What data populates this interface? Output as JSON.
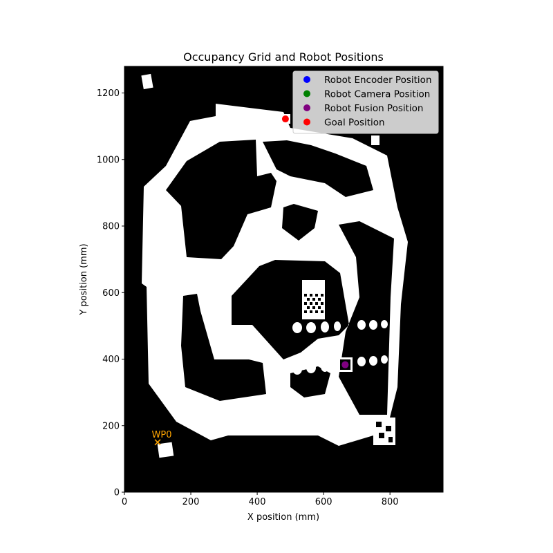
{
  "colors": {
    "background": "#000000",
    "free_space": "#ffffff",
    "encoder": "#0000ff",
    "camera": "#008000",
    "fusion": "#800080",
    "goal": "#ff0000",
    "waypoint": "#ffa500"
  },
  "chart_data": {
    "type": "scatter",
    "title": "Occupancy Grid and Robot Positions",
    "xlabel": "X position (mm)",
    "ylabel": "Y position (mm)",
    "xlim": [
      0,
      960
    ],
    "ylim": [
      0,
      1280
    ],
    "x_ticks": [
      0,
      200,
      400,
      600,
      800
    ],
    "y_ticks": [
      0,
      200,
      400,
      600,
      800,
      1000,
      1200
    ],
    "x_tick_labels": [
      "0",
      "200",
      "400",
      "600",
      "800"
    ],
    "y_tick_labels": [
      "0",
      "200",
      "400",
      "600",
      "800",
      "1000",
      "1200"
    ],
    "grid": false,
    "legend_position": "upper right",
    "background_image": "occupancy grid map (white = free track, black = obstacle)",
    "series": [
      {
        "name": "Robot Encoder Position",
        "color": "#0000ff",
        "marker": "circle",
        "points": [
          [
            665,
            383
          ]
        ]
      },
      {
        "name": "Robot Camera Position",
        "color": "#008000",
        "marker": "circle",
        "points": [
          [
            665,
            383
          ]
        ]
      },
      {
        "name": "Robot Fusion Position",
        "color": "#800080",
        "marker": "circle",
        "points": [
          [
            665,
            383
          ]
        ]
      },
      {
        "name": "Goal Position",
        "color": "#ff0000",
        "marker": "circle",
        "points": [
          [
            485,
            1122
          ]
        ]
      }
    ],
    "annotations": [
      {
        "label": "WP0",
        "marker": "x",
        "color": "#ffa500",
        "x": 100,
        "y": 150
      }
    ]
  }
}
